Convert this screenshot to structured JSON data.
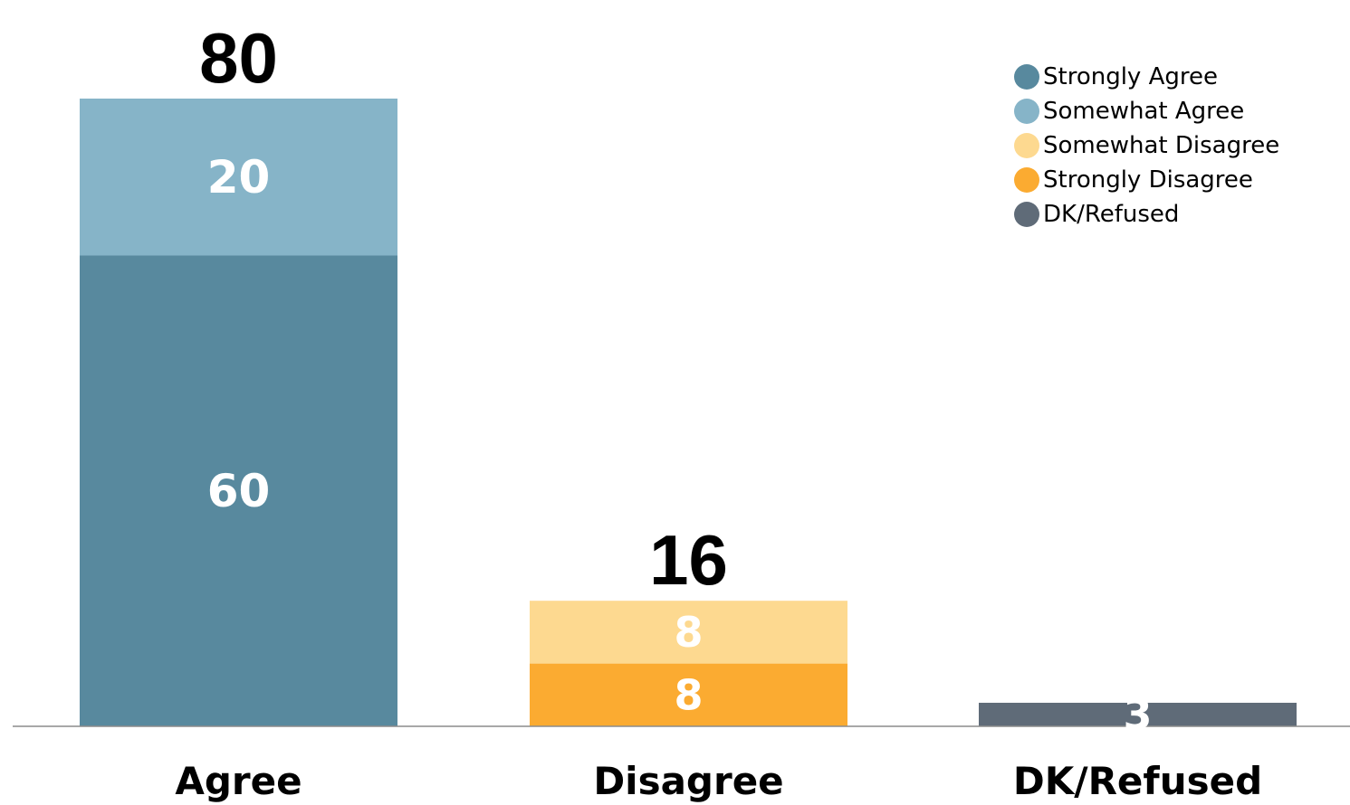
{
  "chart_data": {
    "type": "bar",
    "stacked": true,
    "categories": [
      "Agree",
      "Disagree",
      "DK/Refused"
    ],
    "totals": [
      80,
      16,
      3
    ],
    "segments": [
      {
        "name": "Strongly Agree",
        "category": "Agree",
        "value": 60,
        "color": "#58899e",
        "label": "60"
      },
      {
        "name": "Somewhat Agree",
        "category": "Agree",
        "value": 20,
        "color": "#86b4c8",
        "label": "20"
      },
      {
        "name": "Strongly Disagree",
        "category": "Disagree",
        "value": 8,
        "color": "#fbab31",
        "label": "8"
      },
      {
        "name": "Somewhat Disagree",
        "category": "Disagree",
        "value": 8,
        "color": "#fdd990",
        "label": "8"
      },
      {
        "name": "DK/Refused",
        "category": "DK/Refused",
        "value": 3,
        "color": "#5f6b78",
        "label": "3"
      }
    ],
    "ylim": [
      0,
      80
    ],
    "grid": false,
    "legend_position": "top-right",
    "legend": [
      {
        "label": "Strongly Agree",
        "color": "#58899e"
      },
      {
        "label": "Somewhat Agree",
        "color": "#86b4c8"
      },
      {
        "label": "Somewhat Disagree",
        "color": "#fdd990"
      },
      {
        "label": "Strongly Disagree",
        "color": "#fbab31"
      },
      {
        "label": "DK/Refused",
        "color": "#5f6b78"
      }
    ]
  }
}
